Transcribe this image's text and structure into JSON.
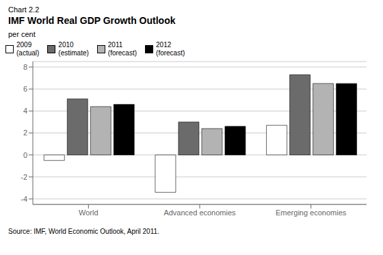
{
  "chart_data": {
    "type": "bar",
    "subtitle": "Chart 2.2",
    "title": "IMF World Real GDP Growth Outlook",
    "ylabel": "per cent",
    "categories": [
      "World",
      "Advanced economies",
      "Emerging economies"
    ],
    "series": [
      {
        "name": "2009\n(actual)",
        "color": "#ffffff",
        "values": [
          -0.5,
          -3.4,
          2.7
        ]
      },
      {
        "name": "2010\n(estimate)",
        "color": "#6b6b6b",
        "values": [
          5.1,
          3.0,
          7.3
        ]
      },
      {
        "name": "2011\n(forecast)",
        "color": "#b3b3b3",
        "values": [
          4.4,
          2.4,
          6.5
        ]
      },
      {
        "name": "2012\n(forecast)",
        "color": "#000000",
        "values": [
          4.6,
          2.6,
          6.5
        ]
      }
    ],
    "ylim": [
      -4.5,
      8.5
    ],
    "yticks": [
      -4,
      -2,
      0,
      2,
      4,
      6,
      8
    ],
    "grid": true,
    "legend": "upper left",
    "annotations": [
      "Source: IMF, World Economic Outlook, April 2011."
    ]
  }
}
